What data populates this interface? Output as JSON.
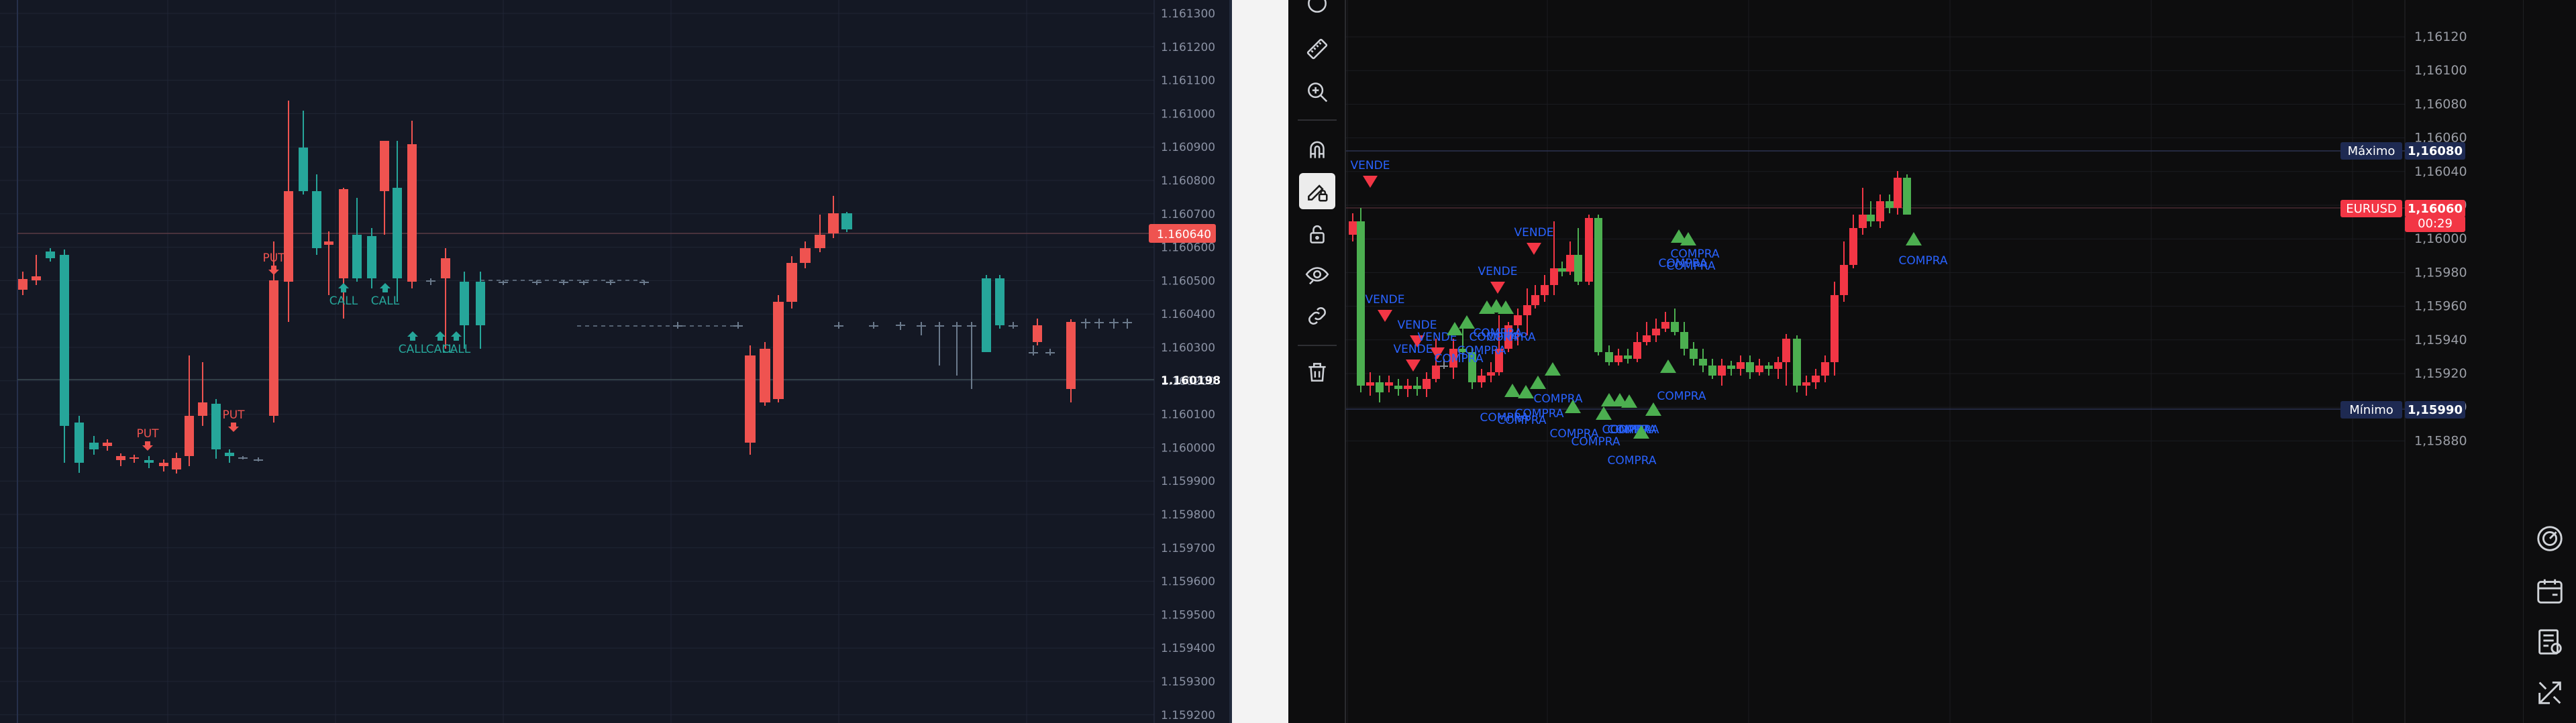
{
  "left_chart": {
    "price_ticks": [
      "1.161300",
      "1.161200",
      "1.161100",
      "1.161000",
      "1.160900",
      "1.160800",
      "1.160700",
      "1.160600",
      "1.160500",
      "1.160400",
      "1.160300",
      "1.160200",
      "1.160100",
      "1.160000",
      "1.159900",
      "1.159800",
      "1.159700",
      "1.159600",
      "1.159500",
      "1.159400",
      "1.159300",
      "1.159200"
    ],
    "current_price_badge": "1.160640",
    "marked_price_label": "1.160198",
    "signal_labels": {
      "put": "PUT",
      "call": "CALL"
    },
    "colors": {
      "background": "#141824",
      "up": "#26a69a",
      "down": "#ef5350",
      "badge": "#ef5350"
    }
  },
  "right_chart": {
    "symbol_badge": "EURUSD",
    "price_badge": "1,16060",
    "countdown_badge": "00:29",
    "maximo_label": "Máximo",
    "maximo_value": "1,16080",
    "minimo_label": "Mínimo",
    "minimo_value": "1,15990",
    "price_ticks": [
      "1,16120",
      "1,16100",
      "1,16080",
      "1,16060",
      "1,16040",
      "1,16020",
      "1,16000",
      "1,15980",
      "1,15960",
      "1,15940",
      "1,15920",
      "1,15900",
      "1,15880"
    ],
    "signal_labels": {
      "sell": "VENDE",
      "buy": "COMPRA"
    },
    "colors": {
      "background": "#0d0d0e",
      "up": "#4caf50",
      "down": "#f23645",
      "label_blue": "#2962ff",
      "badge_navy": "#1e2a52"
    }
  },
  "toolbar": {
    "tools": [
      "ruler-icon",
      "zoom-in-icon",
      "magnet-icon",
      "pencil-lock-icon",
      "unlock-icon",
      "eye-icon",
      "link-icon",
      "trash-icon"
    ]
  },
  "right_side_icons": [
    "speedometer-icon",
    "calendar-icon",
    "news-icon",
    "cross-arrows-icon"
  ]
}
